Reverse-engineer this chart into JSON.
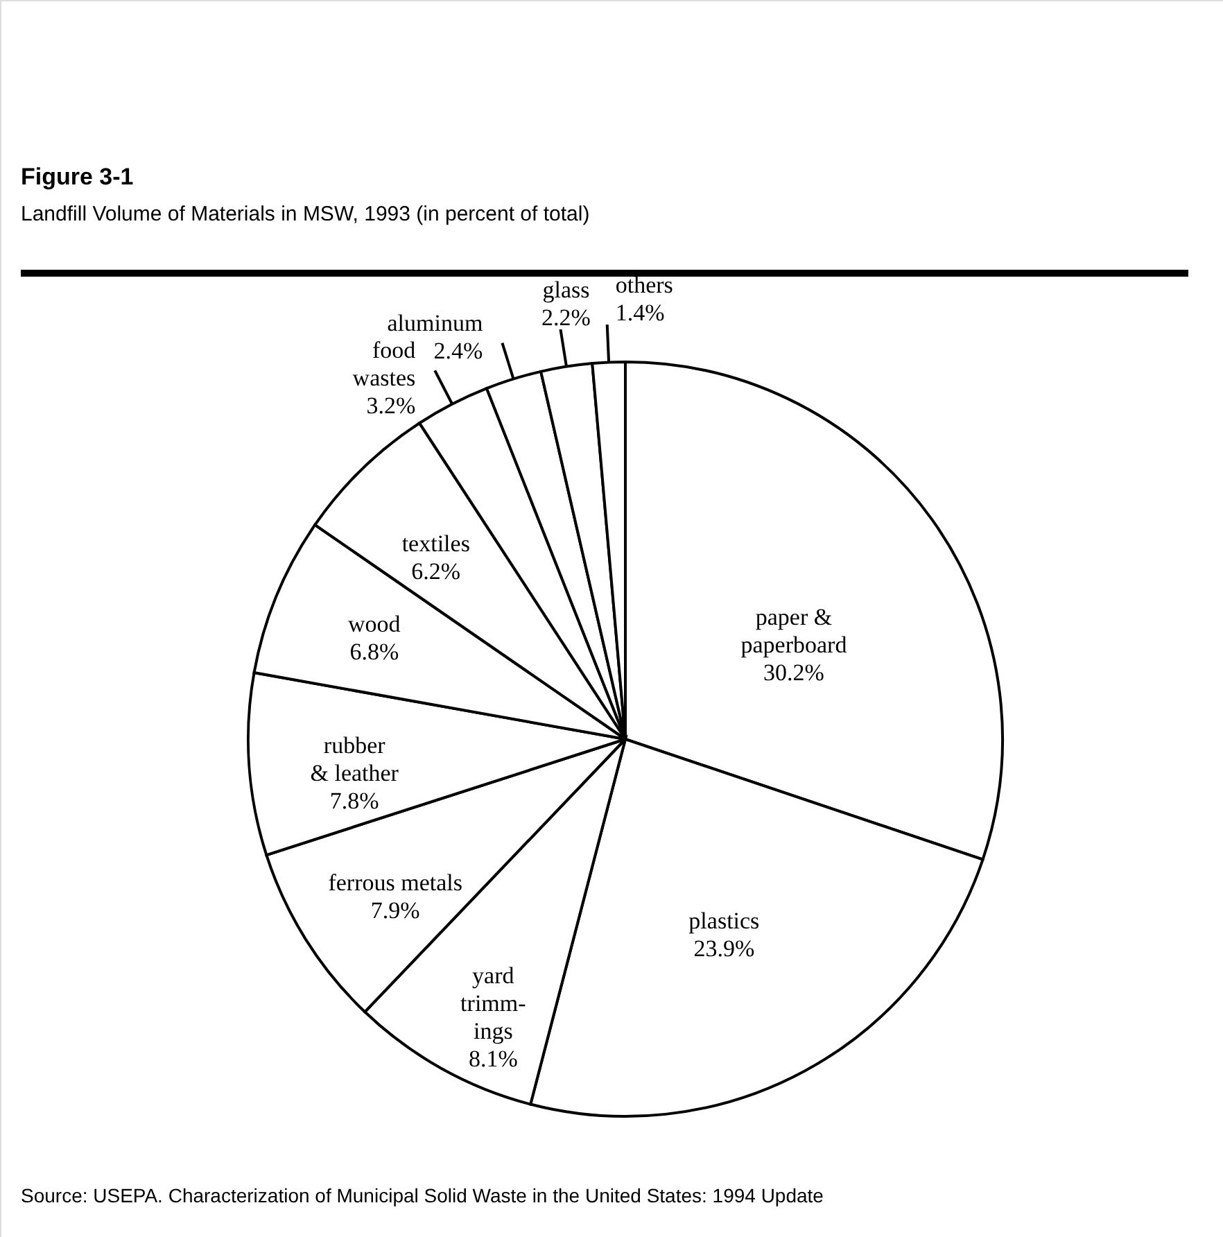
{
  "chart_data": {
    "type": "pie",
    "title": "Figure 3-1",
    "subtitle": "Landfill Volume of Materials in MSW, 1993 (in percent of total)",
    "categories": [
      "paper &\npaperboard",
      "plastics",
      "yard\ntrimm-\nings",
      "ferrous metals",
      "rubber\n& leather",
      "wood",
      "textiles",
      "food\nwastes",
      "aluminum",
      "glass",
      "others"
    ],
    "values": [
      30.2,
      23.9,
      8.1,
      7.9,
      7.8,
      6.8,
      6.2,
      3.2,
      2.4,
      2.2,
      1.4
    ],
    "value_labels": [
      "30.2%",
      "23.9%",
      "8.1%",
      "7.9%",
      "7.8%",
      "6.8%",
      "6.2%",
      "3.2%",
      "2.4%",
      "2.2%",
      "1.4%"
    ],
    "colors": [
      "#ffffff",
      "#ffffff",
      "#ffffff",
      "#ffffff",
      "#ffffff",
      "#ffffff",
      "#ffffff",
      "#ffffff",
      "#ffffff",
      "#ffffff",
      "#ffffff"
    ],
    "annotations": [
      "Source:  USEPA. Characterization of Municipal Solid Waste in the United States: 1994 Update"
    ]
  }
}
